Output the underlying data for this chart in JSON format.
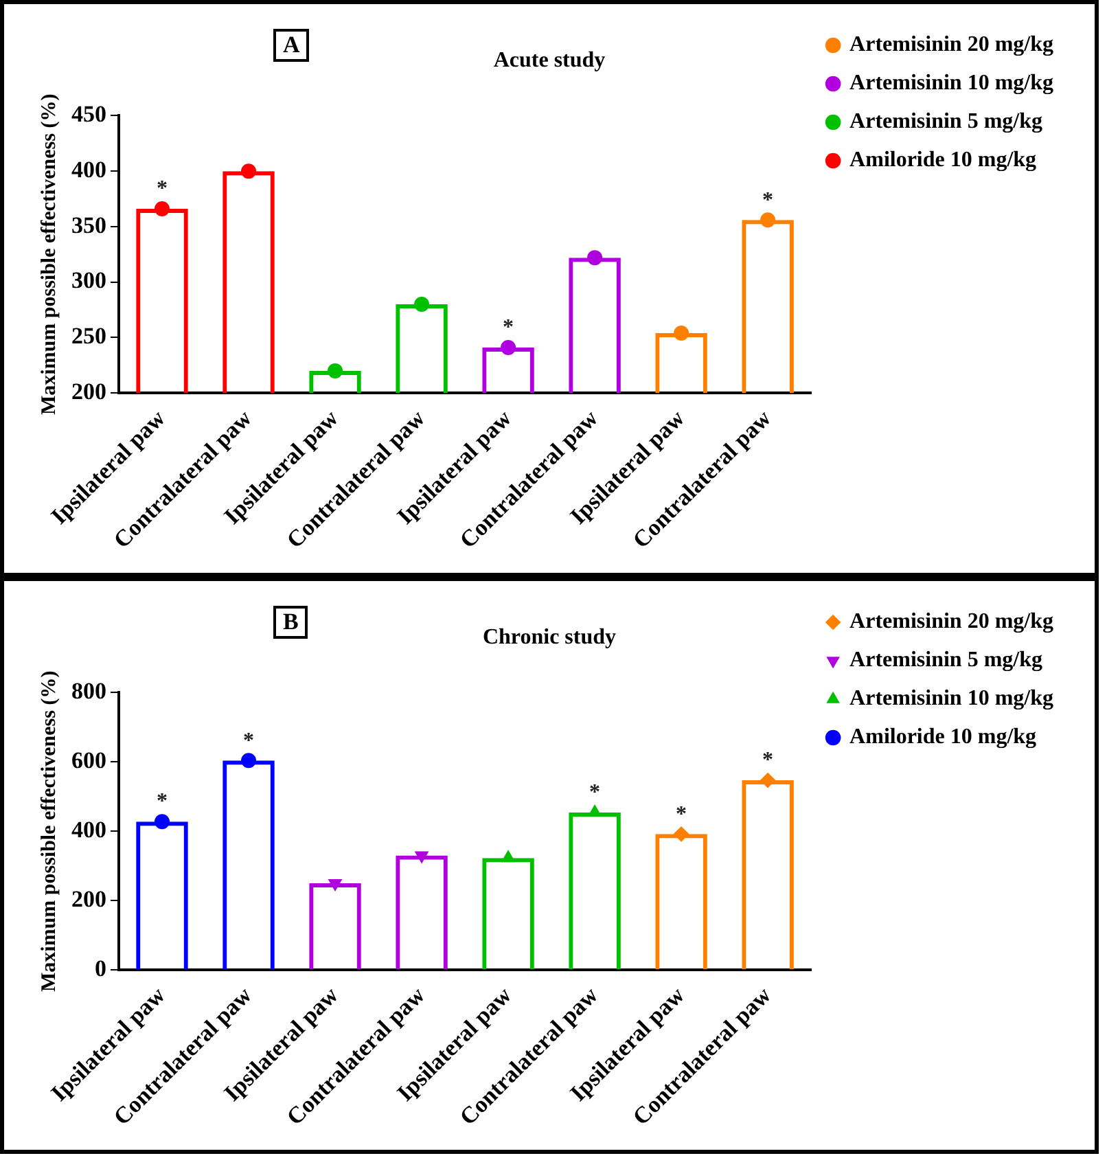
{
  "chart_data": [
    {
      "type": "bar",
      "title": "Acute study",
      "ylabel": "Maximum possible effectiveness (%)",
      "annotations": [
        "A"
      ],
      "categories": [
        "Ipsilateral paw",
        "Contralateral paw",
        "Ipsilateral paw",
        "Contralateral paw",
        "Ipsilateral paw",
        "Contralateral paw",
        "Ipsilateral paw",
        "Contralateral paw"
      ],
      "series": [
        {
          "color": "#ff8000",
          "values": [
            null,
            null,
            null,
            null,
            null,
            null,
            254,
            356
          ],
          "value_labels": [
            null,
            null,
            null,
            null,
            null,
            null,
            null,
            "*"
          ]
        },
        {
          "color": "#b000e0",
          "values": [
            null,
            null,
            null,
            null,
            241,
            322,
            null,
            null
          ],
          "value_labels": [
            null,
            null,
            null,
            null,
            "*",
            null,
            null,
            null
          ]
        },
        {
          "color": "#00c000",
          "values": [
            null,
            null,
            220,
            280,
            null,
            null,
            null,
            null
          ]
        },
        {
          "color": "#ff0000",
          "values": [
            366,
            400,
            null,
            null,
            null,
            null,
            null,
            null
          ],
          "value_labels": [
            "*",
            null,
            null,
            null,
            null,
            null,
            null,
            null
          ]
        },
        {
          "type": "scatter",
          "name": "Artemisinin 20 mg/kg",
          "color": "#ff8000",
          "marker": "circle",
          "values": [
            null,
            null,
            null,
            null,
            null,
            null,
            254,
            356
          ]
        },
        {
          "type": "scatter",
          "name": "Artemisinin 10 mg/kg",
          "color": "#b000e0",
          "marker": "circle",
          "values": [
            null,
            null,
            null,
            null,
            241,
            322,
            null,
            null
          ]
        },
        {
          "type": "scatter",
          "name": "Artemisinin 5 mg/kg",
          "color": "#00c000",
          "marker": "circle",
          "values": [
            null,
            null,
            220,
            280,
            null,
            null,
            null,
            null
          ]
        },
        {
          "type": "scatter",
          "name": "Amiloride 10 mg/kg",
          "color": "#ff0000",
          "marker": "circle",
          "values": [
            366,
            400,
            null,
            null,
            null,
            null,
            null,
            null
          ]
        }
      ],
      "ylim": [
        200,
        450
      ],
      "yticks": [
        200,
        250,
        300,
        350,
        400,
        450
      ],
      "legend": "right"
    },
    {
      "type": "bar",
      "title": "Chronic study",
      "ylabel": "Maximum possible effectiveness (%)",
      "annotations": [
        "B"
      ],
      "categories": [
        "Ipsilateral paw",
        "Contralateral paw",
        "Ipsilateral paw",
        "Contralateral paw",
        "Ipsilateral paw",
        "Contralateral paw",
        "Ipsilateral paw",
        "Contralateral paw"
      ],
      "series": [
        {
          "color": "#ff8000",
          "values": [
            null,
            null,
            null,
            null,
            null,
            null,
            392,
            547
          ],
          "value_labels": [
            null,
            null,
            null,
            null,
            null,
            null,
            "*",
            "*"
          ]
        },
        {
          "color": "#b000e0",
          "values": [
            null,
            null,
            250,
            330,
            null,
            null,
            null,
            null
          ]
        },
        {
          "color": "#00c000",
          "values": [
            null,
            null,
            null,
            null,
            323,
            454,
            null,
            null
          ],
          "value_labels": [
            null,
            null,
            null,
            null,
            null,
            "*",
            null,
            null
          ]
        },
        {
          "color": "#0000ff",
          "values": [
            428,
            604,
            null,
            null,
            null,
            null,
            null,
            null
          ],
          "value_labels": [
            "*",
            "*",
            null,
            null,
            null,
            null,
            null,
            null
          ]
        },
        {
          "type": "scatter",
          "name": "Artemisinin 20 mg/kg",
          "color": "#ff8000",
          "marker": "diamond",
          "values": [
            null,
            null,
            null,
            null,
            null,
            null,
            392,
            547
          ]
        },
        {
          "type": "scatter",
          "name": "Artemisinin 5 mg/kg",
          "color": "#b000e0",
          "marker": "triangle_down",
          "values": [
            null,
            null,
            250,
            330,
            null,
            null,
            null,
            null
          ]
        },
        {
          "type": "scatter",
          "name": "Artemisinin 10 mg/kg",
          "color": "#00c000",
          "marker": "triangle",
          "values": [
            null,
            null,
            null,
            null,
            323,
            454,
            null,
            null
          ]
        },
        {
          "type": "scatter",
          "name": "Amiloride 10 mg/kg",
          "color": "#0000ff",
          "marker": "circle",
          "values": [
            428,
            604,
            null,
            null,
            null,
            null,
            null,
            null
          ]
        }
      ],
      "ylim": [
        0,
        800
      ],
      "yticks": [
        0,
        200,
        400,
        600,
        800
      ],
      "legend": "right"
    }
  ]
}
